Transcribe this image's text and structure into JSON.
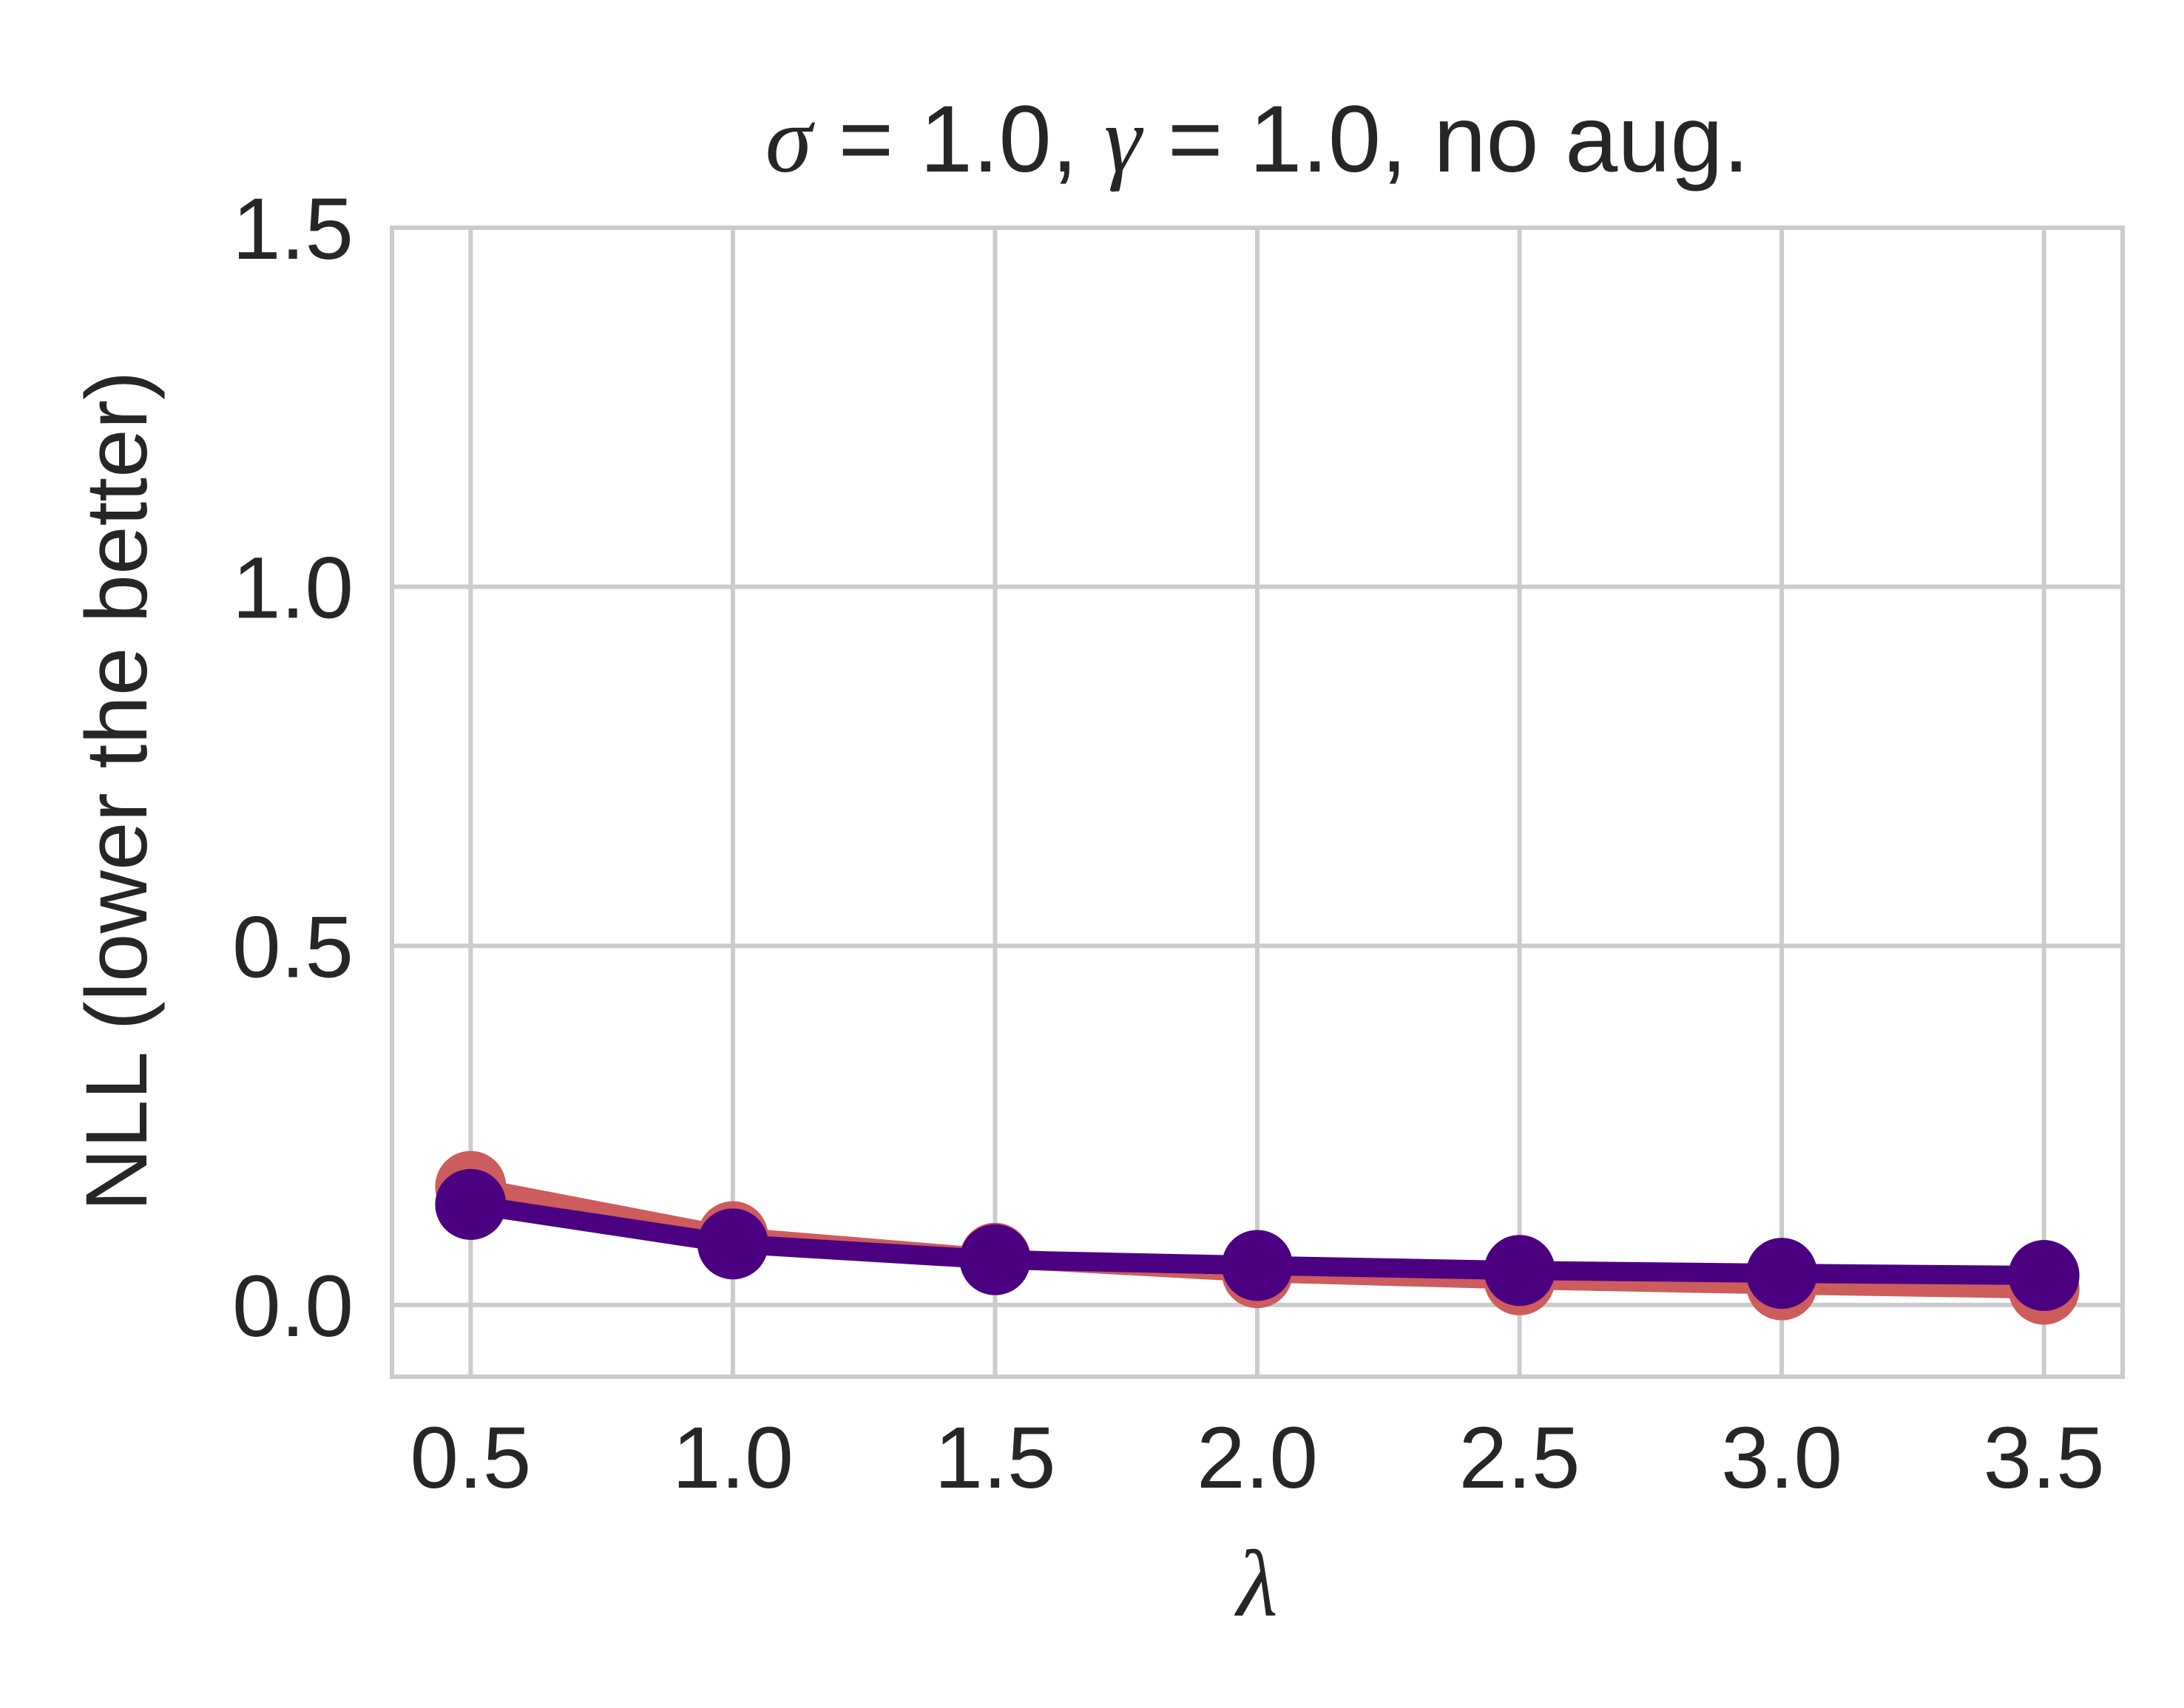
{
  "chart_data": {
    "type": "line",
    "title": {
      "sym1": "σ",
      "eq1": " = 1.0, ",
      "sym2": "γ",
      "eq2": " = 1.0, no aug."
    },
    "xlabel": "λ",
    "ylabel": "NLL (lower the better)",
    "x": [
      0.5,
      1.0,
      1.5,
      2.0,
      2.5,
      3.0,
      3.5
    ],
    "xticks": [
      0.5,
      1.0,
      1.5,
      2.0,
      2.5,
      3.0,
      3.5
    ],
    "xtick_labels": [
      "0.5",
      "1.0",
      "1.5",
      "2.0",
      "2.5",
      "3.0",
      "3.5"
    ],
    "yticks": [
      0.0,
      0.5,
      1.0,
      1.5
    ],
    "ytick_labels": [
      "0.0",
      "0.5",
      "1.0",
      "1.5"
    ],
    "xlim": [
      0.35,
      3.65
    ],
    "ylim": [
      -0.1,
      1.5
    ],
    "grid": true,
    "legend": "none",
    "series": [
      {
        "color": "#cd5c5c",
        "values": [
          0.165,
          0.095,
          0.065,
          0.045,
          0.035,
          0.028,
          0.022
        ]
      },
      {
        "color": "#4b0082",
        "values": [
          0.14,
          0.085,
          0.063,
          0.055,
          0.048,
          0.044,
          0.041
        ]
      }
    ],
    "colors": {
      "grid": "#cccccc",
      "text": "#262626",
      "background": "#ffffff"
    }
  }
}
